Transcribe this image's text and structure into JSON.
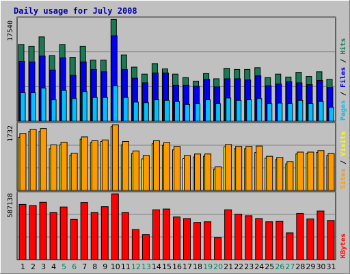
{
  "title": "Daily usage for July 2008",
  "colors": {
    "background": "#c0c0c0",
    "hits": "#1a7a55",
    "files": "#0000ee",
    "pages": "#00c0ff",
    "visits": "#ffff00",
    "sites": "#ff9900",
    "kbytes": "#ff0000",
    "title": "#0000a0",
    "weekend_day": "#008060",
    "weekday_day": "#000000"
  },
  "legends": {
    "top": [
      {
        "text": "Pages",
        "color": "#00c0ff"
      },
      {
        "text": " / ",
        "color": "#000000"
      },
      {
        "text": "Files",
        "color": "#0000ee"
      },
      {
        "text": " / ",
        "color": "#000000"
      },
      {
        "text": "Hits",
        "color": "#1a7a55"
      }
    ],
    "middle": [
      {
        "text": "Sites",
        "color": "#ff9900"
      },
      {
        "text": " / ",
        "color": "#000000"
      },
      {
        "text": "Visits",
        "color": "#ffff00"
      }
    ],
    "bottom": [
      {
        "text": "KBytes",
        "color": "#ff0000"
      }
    ]
  },
  "chart_data": [
    {
      "type": "bar",
      "panel": "hits-files-pages",
      "ymax_label": "17540",
      "ylim": [
        0,
        17540
      ],
      "categories": [
        "1",
        "2",
        "3",
        "4",
        "5",
        "6",
        "7",
        "8",
        "9",
        "10",
        "11",
        "12",
        "13",
        "14",
        "15",
        "16",
        "17",
        "18",
        "19",
        "20",
        "21",
        "22",
        "23",
        "24",
        "25",
        "26",
        "27",
        "28",
        "29",
        "30",
        "31"
      ],
      "series": [
        {
          "name": "Hits",
          "values": [
            13200,
            12900,
            14500,
            11300,
            13200,
            11000,
            12900,
            10500,
            10500,
            17500,
            11400,
            9300,
            8100,
            9900,
            9000,
            8100,
            7500,
            6900,
            8200,
            7300,
            9100,
            8900,
            8900,
            9200,
            7500,
            8100,
            7600,
            8400,
            7700,
            8500,
            7200
          ]
        },
        {
          "name": "Files",
          "values": [
            10300,
            10200,
            11200,
            8800,
            10900,
            7900,
            10200,
            8900,
            8500,
            14700,
            8900,
            7400,
            6600,
            8300,
            8300,
            6200,
            6200,
            6000,
            7200,
            5900,
            7300,
            7300,
            7100,
            7800,
            6100,
            6400,
            6800,
            6600,
            6300,
            7000,
            5800
          ]
        },
        {
          "name": "Pages",
          "values": [
            4900,
            4900,
            5700,
            3700,
            5300,
            3900,
            5100,
            4100,
            4100,
            6100,
            4100,
            3300,
            3200,
            3700,
            3600,
            3400,
            2900,
            3000,
            3700,
            3000,
            4000,
            3600,
            3700,
            3900,
            3000,
            3100,
            3000,
            3600,
            3000,
            3400,
            2400
          ]
        }
      ]
    },
    {
      "type": "bar",
      "panel": "sites-visits",
      "ymax_label": "1732",
      "ylim": [
        0,
        1732
      ],
      "categories": [
        "1",
        "2",
        "3",
        "4",
        "5",
        "6",
        "7",
        "8",
        "9",
        "10",
        "11",
        "12",
        "13",
        "14",
        "15",
        "16",
        "17",
        "18",
        "19",
        "20",
        "21",
        "22",
        "23",
        "24",
        "25",
        "26",
        "27",
        "28",
        "29",
        "30",
        "31"
      ],
      "series": [
        {
          "name": "Sites",
          "values": [
            1500,
            1610,
            1630,
            1200,
            1270,
            980,
            1410,
            1310,
            1330,
            1730,
            1290,
            1040,
            920,
            1310,
            1260,
            1160,
            920,
            960,
            960,
            620,
            1210,
            1160,
            1160,
            1170,
            900,
            870,
            760,
            1010,
            1010,
            1050,
            970
          ]
        },
        {
          "name": "Visits",
          "values": [
            1400,
            1560,
            1560,
            1100,
            1200,
            930,
            1350,
            1260,
            1290,
            1680,
            1200,
            970,
            830,
            1230,
            1190,
            1070,
            840,
            880,
            900,
            560,
            1150,
            1100,
            1100,
            1000,
            850,
            810,
            700,
            960,
            970,
            1000,
            920
          ]
        }
      ]
    },
    {
      "type": "bar",
      "panel": "kbytes",
      "ymax_label": "587138",
      "ylim": [
        0,
        587138
      ],
      "categories": [
        "1",
        "2",
        "3",
        "4",
        "5",
        "6",
        "7",
        "8",
        "9",
        "10",
        "11",
        "12",
        "13",
        "14",
        "15",
        "16",
        "17",
        "18",
        "19",
        "20",
        "21",
        "22",
        "23",
        "24",
        "25",
        "26",
        "27",
        "28",
        "29",
        "30",
        "31"
      ],
      "series": [
        {
          "name": "KBytes",
          "values": [
            493000,
            483000,
            512000,
            420000,
            470000,
            359000,
            510000,
            420000,
            473000,
            587000,
            420000,
            269000,
            223000,
            445000,
            452000,
            381000,
            367000,
            332000,
            338000,
            197000,
            445000,
            406000,
            392000,
            367000,
            338000,
            341000,
            239000,
            413000,
            363000,
            434000,
            350000
          ]
        }
      ]
    }
  ],
  "weekend_days": [
    "5",
    "6",
    "12",
    "13",
    "19",
    "20",
    "26",
    "27"
  ]
}
